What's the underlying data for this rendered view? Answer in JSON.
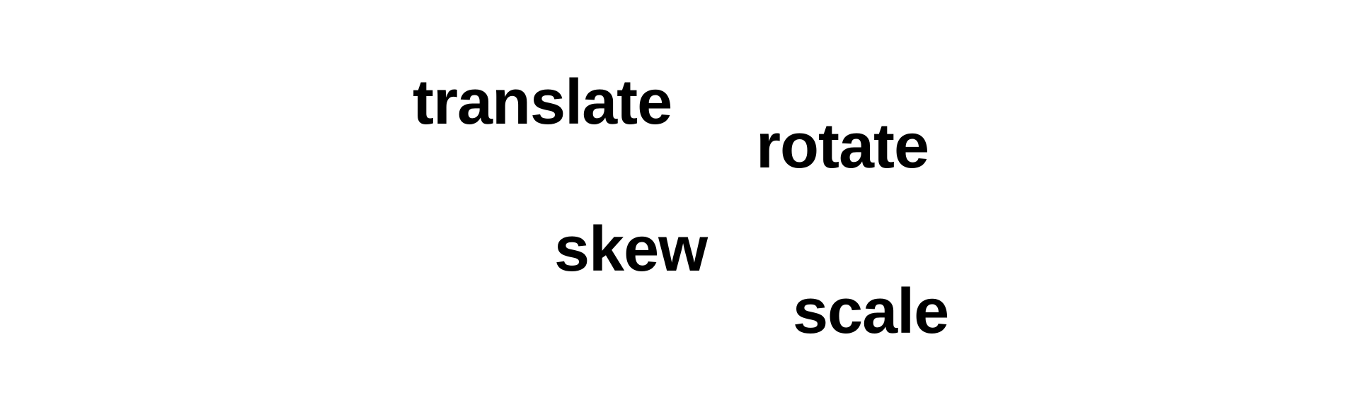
{
  "words": {
    "translate": "translate",
    "rotate": "rotate",
    "skew": "skew",
    "scale": "scale"
  },
  "colors": {
    "background": "#ffffff",
    "text": "#000000"
  }
}
